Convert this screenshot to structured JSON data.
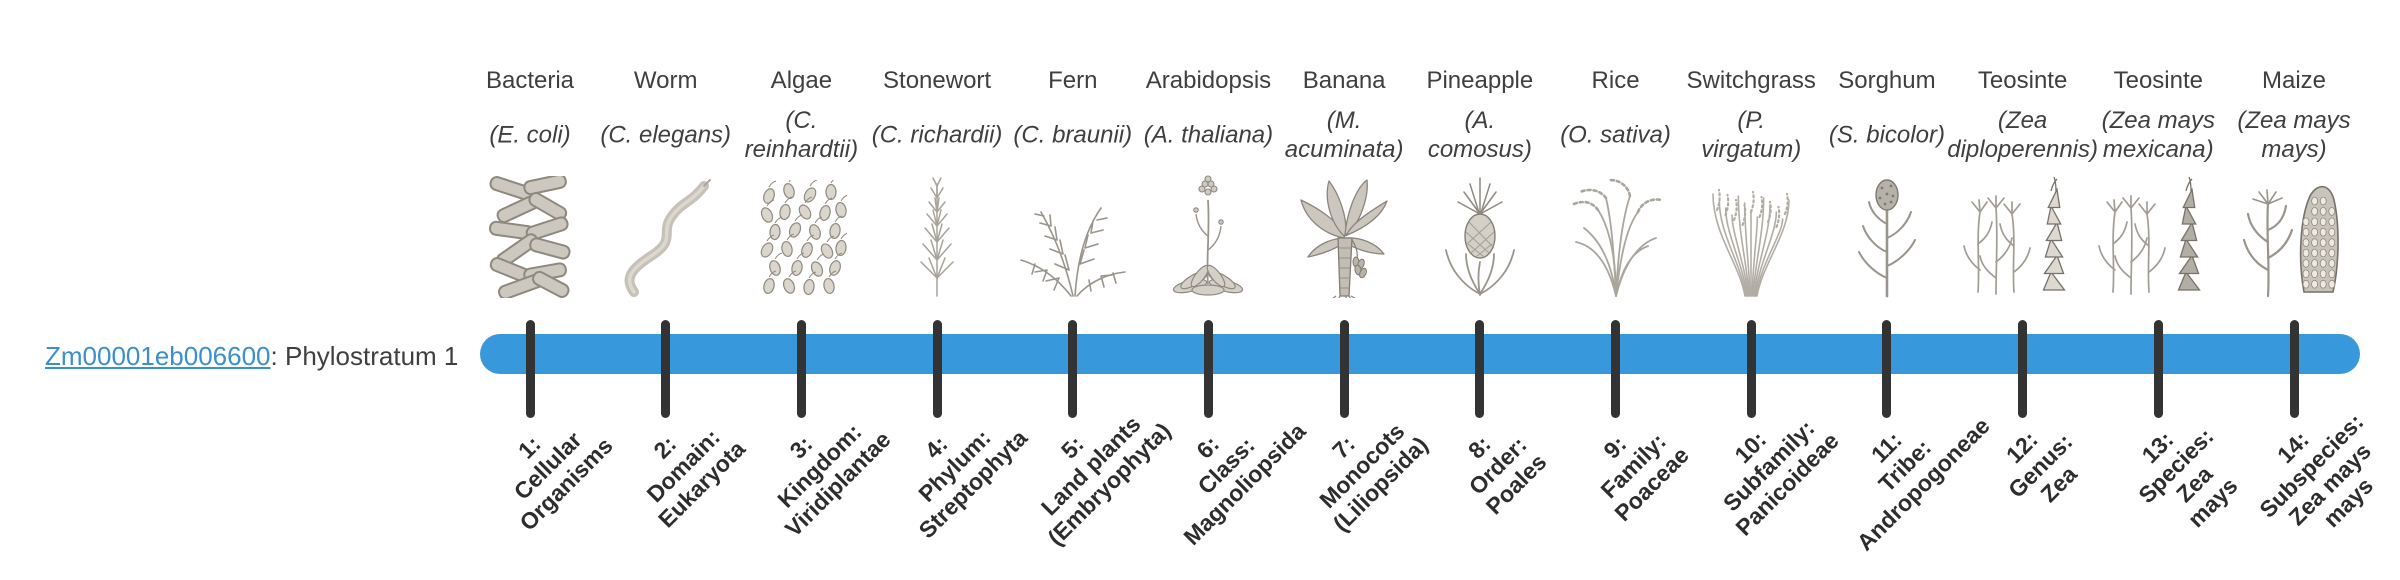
{
  "gene": {
    "id": "Zm00001eb006600",
    "suffix": ": Phylostratum 1"
  },
  "colors": {
    "bar": "#3798db",
    "tick": "#333333",
    "link": "#3b8fd0",
    "text": "#3f3f3f",
    "label": "#2d2d2d"
  },
  "organisms": [
    {
      "common": "Bacteria",
      "sci": "(E. coli)",
      "icon": "bacteria",
      "stratum": "1:\nCellular\nOrganisms"
    },
    {
      "common": "Worm",
      "sci": "(C. elegans)",
      "icon": "worm",
      "stratum": "2:\nDomain:\nEukaryota"
    },
    {
      "common": "Algae",
      "sci": "(C.\nreinhardtii)",
      "icon": "algae",
      "stratum": "3:\nKingdom:\nViridiplantae"
    },
    {
      "common": "Stonewort",
      "sci": "(C. richardii)",
      "icon": "stonewort",
      "stratum": "4:\nPhylum:\nStreptophyta"
    },
    {
      "common": "Fern",
      "sci": "(C. braunii)",
      "icon": "fern",
      "stratum": "5:\nLand plants\n(Embryophyta)"
    },
    {
      "common": "Arabidopsis",
      "sci": "(A. thaliana)",
      "icon": "arabidopsis",
      "stratum": "6:\nClass:\nMagnoliopsida"
    },
    {
      "common": "Banana",
      "sci": "(M.\nacuminata)",
      "icon": "banana",
      "stratum": "7:\nMonocots\n(Liliopsida)"
    },
    {
      "common": "Pineapple",
      "sci": "(A.\ncomosus)",
      "icon": "pineapple",
      "stratum": "8:\nOrder:\nPoales"
    },
    {
      "common": "Rice",
      "sci": "(O. sativa)",
      "icon": "rice",
      "stratum": "9:\nFamily:\nPoaceae"
    },
    {
      "common": "Switchgrass",
      "sci": "(P.\nvirgatum)",
      "icon": "switchgrass",
      "stratum": "10:\nSubfamily:\nPanicoideae"
    },
    {
      "common": "Sorghum",
      "sci": "(S. bicolor)",
      "icon": "sorghum",
      "stratum": "11:\nTribe:\nAndropogoneae"
    },
    {
      "common": "Teosinte",
      "sci": "(Zea\ndiploperennis)",
      "icon": "teosinte-diploperennis",
      "stratum": "12:\nGenus:\nZea"
    },
    {
      "common": "Teosinte",
      "sci": "(Zea mays\nmexicana)",
      "icon": "teosinte-mexicana",
      "stratum": "13:\nSpecies:\nZea\nmays"
    },
    {
      "common": "Maize",
      "sci": "(Zea mays\nmays)",
      "icon": "maize",
      "stratum": "14:\nSubspecies:\nZea mays\nmays"
    }
  ]
}
